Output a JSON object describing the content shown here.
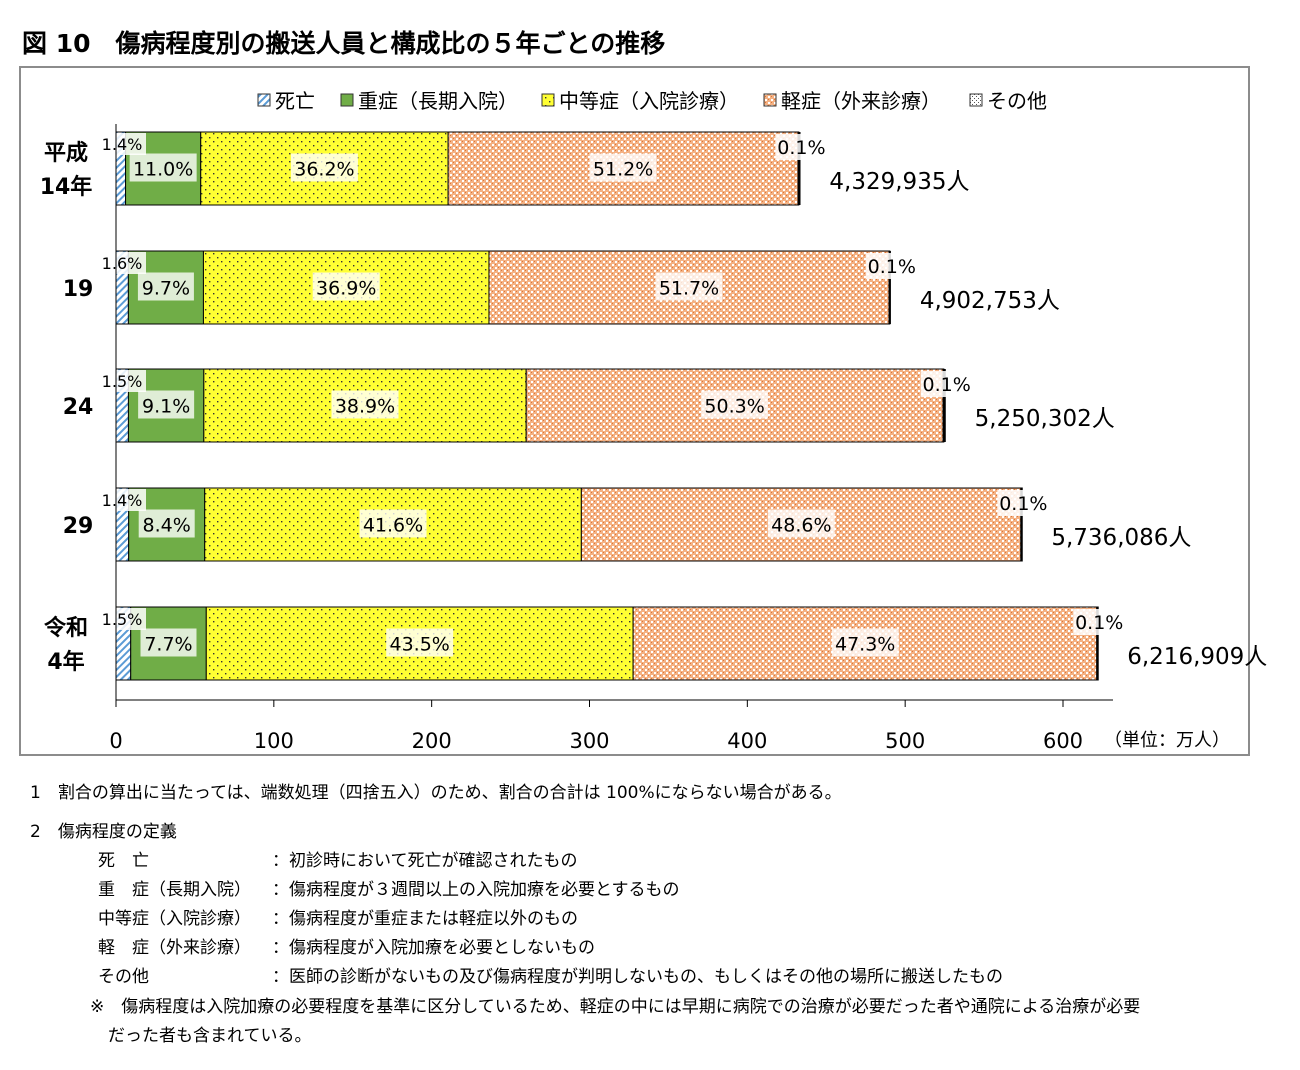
{
  "title": "図 10　傷病程度別の搬送人員と構成比の５年ごとの推移",
  "chart_data": {
    "type": "bar",
    "orientation": "horizontal",
    "stacked": true,
    "unit_label": "（単位：万人）",
    "xlim": [
      0,
      600
    ],
    "x_ticks": [
      "0",
      "100",
      "200",
      "300",
      "400",
      "500",
      "600"
    ],
    "legend_position": "top",
    "categories": [
      "平成\n14年",
      "19",
      "24",
      "29",
      "令和\n4年"
    ],
    "totals_man": [
      432.9935,
      490.2753,
      525.0302,
      573.6086,
      621.6909
    ],
    "total_labels": [
      "4,329,935人",
      "4,902,753人",
      "5,250,302人",
      "5,736,086人",
      "6,216,909人"
    ],
    "series": [
      {
        "name": "死亡",
        "color": "#9dc3e6",
        "pattern": "hatch",
        "values": [
          1.4,
          1.6,
          1.5,
          1.4,
          1.5
        ],
        "labels": [
          "1.4%",
          "1.6%",
          "1.5%",
          "1.4%",
          "1.5%"
        ]
      },
      {
        "name": "重症（長期入院）",
        "color": "#70ad47",
        "pattern": "solid",
        "values": [
          11.0,
          9.7,
          9.1,
          8.4,
          7.7
        ],
        "labels": [
          "11.0%",
          "9.7%",
          "9.1%",
          "8.4%",
          "7.7%"
        ]
      },
      {
        "name": "中等症（入院診療）",
        "color": "#ffff33",
        "pattern": "dots",
        "values": [
          36.2,
          36.9,
          38.9,
          41.6,
          43.5
        ],
        "labels": [
          "36.2%",
          "36.9%",
          "38.9%",
          "41.6%",
          "43.5%"
        ]
      },
      {
        "name": "軽症（外来診療）",
        "color": "#f4b183",
        "pattern": "check",
        "values": [
          51.2,
          51.7,
          50.3,
          48.6,
          47.3
        ],
        "labels": [
          "51.2%",
          "51.7%",
          "50.3%",
          "48.6%",
          "47.3%"
        ]
      },
      {
        "name": "その他",
        "color": "#ffffff",
        "pattern": "fine",
        "values": [
          0.1,
          0.1,
          0.1,
          0.1,
          0.1
        ],
        "labels": [
          "0.1%",
          "0.1%",
          "0.1%",
          "0.1%",
          "0.1%"
        ]
      }
    ]
  },
  "notes": {
    "note1": "1　割合の算出に当たっては、端数処理（四捨五入）のため、割合の合計は 100%にならない場合がある。",
    "note2_heading": "2　傷病程度の定義",
    "definitions": [
      {
        "term": "死　亡",
        "desc": "：初診時において死亡が確認されたもの"
      },
      {
        "term": "重　症（長期入院）",
        "desc": "：傷病程度が３週間以上の入院加療を必要とするもの"
      },
      {
        "term": "中等症（入院診療）",
        "desc": "：傷病程度が重症または軽症以外のもの"
      },
      {
        "term": "軽　症（外来診療）",
        "desc": "：傷病程度が入院加療を必要としないもの"
      },
      {
        "term": "その他",
        "desc": "：医師の診断がないもの及び傷病程度が判明しないもの、もしくはその他の場所に搬送したもの"
      }
    ],
    "remark_line1": "※　傷病程度は入院加療の必要程度を基準に区分しているため、軽症の中には早期に病院での治療が必要だった者や通院による治療が必要",
    "remark_line2": "だった者も含まれている。"
  }
}
